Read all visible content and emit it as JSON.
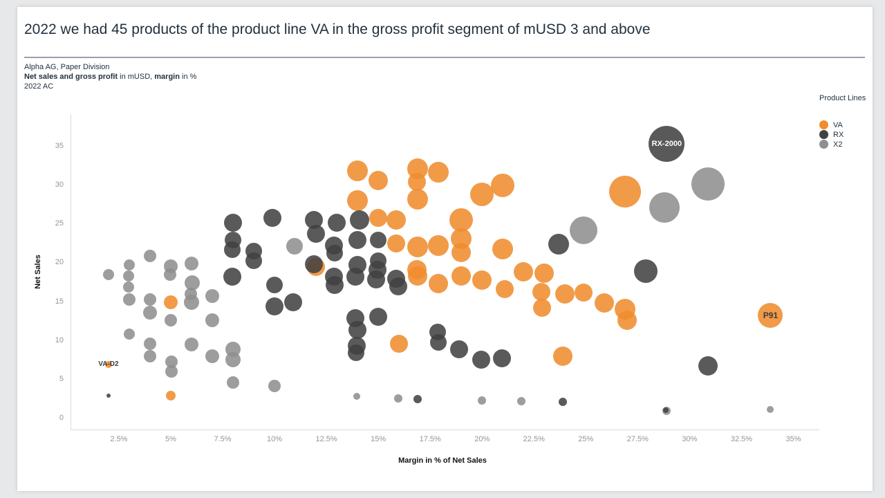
{
  "header": {
    "title": "2022 we had 45 products of the product line VA in the gross profit segment of mUSD 3 and above",
    "subtitle_line1": "Alpha AG, Paper Division",
    "subtitle_line2_segments": [
      {
        "t": "Net sales and gross profit",
        "b": true
      },
      {
        "t": " in mUSD, ",
        "b": false
      },
      {
        "t": "margin",
        "b": true
      },
      {
        "t": " in %",
        "b": false
      }
    ],
    "subtitle_line3": "2022 AC"
  },
  "legend": {
    "title": "Product Lines",
    "items": [
      {
        "label": "VA",
        "color": "#ef8c2e"
      },
      {
        "label": "RX",
        "color": "#414141"
      },
      {
        "label": "X2",
        "color": "#8f8f8f"
      }
    ]
  },
  "colors": {
    "title_text": "#22313f",
    "tick_text": "#8e959c",
    "axis_line": "#d9dadb",
    "divider": "#97a0ab",
    "va_orange": "#ef8c2e",
    "rx_dark_gray": "#414141",
    "x2_light_gray": "#8f8f8f"
  },
  "chart_data": {
    "type": "scatter",
    "subtype": "bubble",
    "title": "2022 we had 45 products of the product line VA in the gross profit segment of mUSD 3 and above",
    "xlabel": "Margin in % of Net Sales",
    "ylabel": "Net Sales",
    "xlim": [
      0.17,
      36.25
    ],
    "ylim": [
      -1.51,
      39.09
    ],
    "grid": false,
    "legend_position": "top-right",
    "x_ticks": [
      {
        "v": 2.5,
        "label": "2.5%"
      },
      {
        "v": 5,
        "label": "5%"
      },
      {
        "v": 7.5,
        "label": "7.5%"
      },
      {
        "v": 10,
        "label": "10%"
      },
      {
        "v": 12.5,
        "label": "12.5%"
      },
      {
        "v": 15,
        "label": "15%"
      },
      {
        "v": 17.5,
        "label": "17.5%"
      },
      {
        "v": 20,
        "label": "20%"
      },
      {
        "v": 22.5,
        "label": "22.5%"
      },
      {
        "v": 25,
        "label": "25%"
      },
      {
        "v": 27.5,
        "label": "27.5%"
      },
      {
        "v": 30,
        "label": "30%"
      },
      {
        "v": 32.5,
        "label": "32.5%"
      },
      {
        "v": 35,
        "label": "35%"
      }
    ],
    "y_ticks": [
      {
        "v": 0,
        "label": "0"
      },
      {
        "v": 5,
        "label": "5"
      },
      {
        "v": 10,
        "label": "10"
      },
      {
        "v": 15,
        "label": "15"
      },
      {
        "v": 20,
        "label": "20"
      },
      {
        "v": 25,
        "label": "25"
      },
      {
        "v": 30,
        "label": "30"
      },
      {
        "v": 35,
        "label": "35"
      }
    ],
    "series": [
      {
        "name": "X2",
        "color": "#8f8f8f",
        "points": [
          [
            2.0,
            18.4,
            8
          ],
          [
            3.0,
            19.7,
            8
          ],
          [
            2.97,
            18.3,
            8
          ],
          [
            2.97,
            16.8,
            8
          ],
          [
            3.0,
            15.2,
            9
          ],
          [
            4.0,
            20.8,
            9
          ],
          [
            5.0,
            19.5,
            10
          ],
          [
            4.97,
            18.4,
            9
          ],
          [
            6.0,
            19.9,
            10
          ],
          [
            6.03,
            17.4,
            11
          ],
          [
            4.0,
            15.2,
            9
          ],
          [
            4.0,
            13.5,
            10
          ],
          [
            5.96,
            15.9,
            9
          ],
          [
            6.0,
            14.9,
            11
          ],
          [
            7.0,
            15.7,
            10
          ],
          [
            5.0,
            12.6,
            9
          ],
          [
            7.0,
            12.6,
            10
          ],
          [
            3.0,
            10.8,
            8
          ],
          [
            4.0,
            9.5,
            9
          ],
          [
            4.0,
            7.9,
            9
          ],
          [
            6.0,
            9.4,
            10
          ],
          [
            7.0,
            7.9,
            10
          ],
          [
            8.0,
            8.8,
            11
          ],
          [
            8.0,
            7.5,
            11
          ],
          [
            5.03,
            7.2,
            9
          ],
          [
            5.03,
            6.0,
            9
          ],
          [
            8.0,
            4.5,
            9
          ],
          [
            10.0,
            4.1,
            9
          ],
          [
            10.96,
            22.1,
            12
          ],
          [
            24.9,
            24.1,
            20
          ],
          [
            28.8,
            27.1,
            22
          ],
          [
            30.9,
            30.1,
            24
          ],
          [
            33.9,
            1.1,
            5
          ],
          [
            28.9,
            0.9,
            6
          ],
          [
            13.95,
            2.8,
            5
          ],
          [
            15.95,
            2.5,
            6
          ],
          [
            20.0,
            2.2,
            6
          ],
          [
            21.9,
            2.1,
            6
          ]
        ]
      },
      {
        "name": "VA",
        "color": "#ef8c2e",
        "points": [
          [
            14.0,
            31.8,
            15
          ],
          [
            15.0,
            30.5,
            14
          ],
          [
            16.9,
            32.1,
            15
          ],
          [
            17.9,
            31.6,
            15
          ],
          [
            16.85,
            30.4,
            13
          ],
          [
            16.9,
            28.1,
            15
          ],
          [
            20.0,
            28.8,
            17
          ],
          [
            21.0,
            29.9,
            17
          ],
          [
            19.0,
            25.5,
            17
          ],
          [
            19.0,
            23.1,
            15
          ],
          [
            14.0,
            28.0,
            15
          ],
          [
            15.0,
            25.7,
            13
          ],
          [
            15.85,
            25.5,
            14
          ],
          [
            15.85,
            22.4,
            13
          ],
          [
            16.9,
            22.0,
            15
          ],
          [
            17.9,
            22.2,
            15
          ],
          [
            19.0,
            21.3,
            14
          ],
          [
            21.0,
            21.7,
            15
          ],
          [
            26.9,
            29.1,
            23
          ],
          [
            16.85,
            19.1,
            14
          ],
          [
            16.9,
            18.3,
            14
          ],
          [
            17.9,
            17.3,
            14
          ],
          [
            19.0,
            18.3,
            14
          ],
          [
            20.0,
            17.7,
            14
          ],
          [
            21.1,
            16.6,
            13
          ],
          [
            22.0,
            18.8,
            14
          ],
          [
            23.0,
            18.6,
            14
          ],
          [
            22.85,
            16.2,
            13
          ],
          [
            22.9,
            14.2,
            13
          ],
          [
            24.0,
            15.9,
            14
          ],
          [
            24.9,
            16.1,
            13
          ],
          [
            25.9,
            14.8,
            14
          ],
          [
            26.9,
            14.0,
            15
          ],
          [
            27.0,
            12.6,
            14
          ],
          {
            "x": 33.9,
            "y": 13.2,
            "r": 18,
            "label": "P91",
            "label_color": "#1e1e1e",
            "label_size": 12
          },
          [
            16.0,
            9.5,
            13
          ],
          [
            23.9,
            7.9,
            14
          ],
          [
            5.0,
            14.9,
            10
          ],
          [
            5.0,
            2.85,
            7
          ],
          {
            "x": 2.0,
            "y": 6.9,
            "r": 5,
            "label": "VA-D2",
            "label_color": "#1e1e1e",
            "label_size": 10
          },
          [
            12.0,
            19.4,
            13
          ]
        ]
      },
      {
        "name": "RX",
        "color": "#414141",
        "points": [
          {
            "x": 28.9,
            "y": 35.3,
            "r": 26,
            "label": "RX-2000",
            "label_color": "#ffffff",
            "label_size": 11
          },
          [
            8.0,
            25.1,
            13
          ],
          [
            9.9,
            25.7,
            13
          ],
          [
            11.9,
            25.5,
            13
          ],
          [
            12.0,
            23.7,
            13
          ],
          [
            13.0,
            25.1,
            13
          ],
          [
            8.0,
            22.9,
            12
          ],
          [
            7.97,
            21.6,
            12
          ],
          [
            9.0,
            21.5,
            12
          ],
          [
            9.0,
            20.2,
            12
          ],
          [
            7.96,
            18.2,
            13
          ],
          [
            10.0,
            17.1,
            12
          ],
          [
            10.0,
            14.3,
            13
          ],
          [
            10.9,
            14.9,
            13
          ],
          [
            14.1,
            25.5,
            14
          ],
          [
            14.0,
            22.9,
            13
          ],
          [
            15.0,
            22.9,
            12
          ],
          [
            12.85,
            22.2,
            13
          ],
          [
            12.9,
            21.2,
            12
          ],
          [
            15.0,
            20.2,
            12
          ],
          [
            14.0,
            19.7,
            13
          ],
          [
            12.85,
            18.2,
            13
          ],
          [
            12.9,
            17.1,
            13
          ],
          [
            13.9,
            18.2,
            13
          ],
          [
            14.95,
            19.05,
            13
          ],
          [
            14.9,
            17.8,
            13
          ],
          [
            15.85,
            17.9,
            13
          ],
          [
            15.97,
            16.9,
            13
          ],
          [
            11.9,
            19.8,
            13
          ],
          [
            13.9,
            12.8,
            13
          ],
          [
            15.0,
            13.0,
            13
          ],
          [
            14.0,
            11.3,
            13
          ],
          [
            13.97,
            9.3,
            13
          ],
          [
            13.93,
            8.4,
            12
          ],
          [
            17.85,
            11.0,
            12
          ],
          [
            17.9,
            9.7,
            12
          ],
          [
            18.9,
            8.8,
            13
          ],
          [
            19.95,
            7.5,
            13
          ],
          [
            20.95,
            7.7,
            13
          ],
          [
            23.7,
            22.35,
            15
          ],
          [
            27.9,
            18.9,
            17
          ],
          [
            30.9,
            6.7,
            14
          ],
          [
            2.0,
            2.85,
            3
          ],
          [
            28.85,
            1.0,
            4
          ],
          [
            16.9,
            2.4,
            6
          ],
          [
            23.9,
            2.05,
            6
          ]
        ]
      }
    ]
  }
}
